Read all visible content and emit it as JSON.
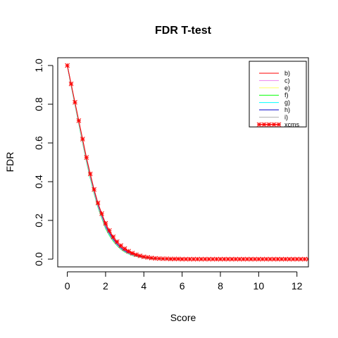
{
  "chart_data": {
    "type": "line",
    "title": "FDR T-test",
    "xlabel": "Score",
    "ylabel": "FDR",
    "xlim": [
      -0.5,
      12.6
    ],
    "ylim": [
      -0.04,
      1.04
    ],
    "x_ticks": [
      0,
      2,
      4,
      6,
      8,
      10,
      12
    ],
    "y_ticks": [
      0.0,
      0.2,
      0.4,
      0.6,
      0.8,
      1.0
    ],
    "x_tick_labels": [
      "0",
      "2",
      "4",
      "6",
      "8",
      "10",
      "12"
    ],
    "y_tick_labels": [
      "0.0",
      "0.2",
      "0.4",
      "0.6",
      "0.8",
      "1.0"
    ],
    "grid": false,
    "legend_position": "top-right",
    "x": [
      0,
      0.2,
      0.4,
      0.6,
      0.8,
      1.0,
      1.2,
      1.4,
      1.6,
      1.8,
      2.0,
      2.2,
      2.4,
      2.6,
      2.8,
      3.0,
      3.2,
      3.4,
      3.6,
      3.8,
      4.0,
      4.2,
      4.4,
      4.6,
      4.8,
      5.0,
      5.2,
      5.4,
      5.6,
      5.8,
      6.0,
      6.2,
      6.4,
      6.6,
      6.8,
      7.0,
      7.2,
      7.4,
      7.6,
      7.8,
      8.0,
      8.2,
      8.4,
      8.6,
      8.8,
      9.0,
      9.2,
      9.4,
      9.6,
      9.8,
      10.0,
      10.2,
      10.4,
      10.6,
      10.8,
      11.0,
      11.2,
      11.4,
      11.6,
      11.8,
      12.0,
      12.2,
      12.4,
      12.6
    ],
    "series": [
      {
        "name": "b)",
        "color": "#ff0000",
        "marker": "none",
        "values": [
          1.0,
          0.9,
          0.805,
          0.71,
          0.615,
          0.52,
          0.435,
          0.355,
          0.285,
          0.23,
          0.175,
          0.14,
          0.108,
          0.082,
          0.062,
          0.046,
          0.034,
          0.025,
          0.018,
          0.013,
          0.009,
          0.007,
          0.005,
          0.004,
          0.003,
          0.002,
          0.002,
          0.001,
          0.001,
          0.001,
          0.001,
          0,
          0,
          0,
          0,
          0,
          0,
          0,
          0,
          0,
          0,
          0,
          0,
          0,
          0,
          0,
          0,
          0,
          0,
          0,
          0,
          0,
          0,
          0,
          0,
          0,
          0,
          0,
          0,
          0,
          0,
          0,
          0,
          0
        ]
      },
      {
        "name": "c)",
        "color": "#ee82ee",
        "marker": "none",
        "values": [
          1.0,
          0.9,
          0.803,
          0.707,
          0.61,
          0.515,
          0.43,
          0.35,
          0.28,
          0.225,
          0.17,
          0.135,
          0.104,
          0.079,
          0.059,
          0.044,
          0.032,
          0.023,
          0.017,
          0.012,
          0.008,
          0.006,
          0.004,
          0.003,
          0.002,
          0.002,
          0.001,
          0.001,
          0.001,
          0,
          0,
          0,
          0,
          0,
          0,
          0,
          0,
          0,
          0,
          0,
          0,
          0,
          0,
          0,
          0,
          0,
          0,
          0,
          0,
          0,
          0,
          0,
          0,
          0,
          0,
          0,
          0,
          0,
          0,
          0,
          0,
          0,
          0,
          0
        ]
      },
      {
        "name": "e)",
        "color": "#ffff66",
        "marker": "none",
        "values": [
          1.0,
          0.898,
          0.8,
          0.703,
          0.605,
          0.51,
          0.425,
          0.345,
          0.275,
          0.22,
          0.165,
          0.13,
          0.1,
          0.076,
          0.056,
          0.041,
          0.03,
          0.022,
          0.016,
          0.011,
          0.008,
          0.005,
          0.004,
          0.003,
          0.002,
          0.001,
          0.001,
          0.001,
          0,
          0,
          0,
          0,
          0,
          0,
          0,
          0,
          0,
          0,
          0,
          0,
          0,
          0,
          0,
          0,
          0,
          0,
          0,
          0,
          0,
          0,
          0,
          0,
          0,
          0,
          0,
          0,
          0,
          0,
          0,
          0,
          0,
          0,
          0,
          0
        ]
      },
      {
        "name": "f)",
        "color": "#00ff00",
        "marker": "none",
        "values": [
          1.0,
          0.896,
          0.797,
          0.698,
          0.6,
          0.503,
          0.417,
          0.338,
          0.268,
          0.212,
          0.158,
          0.122,
          0.093,
          0.07,
          0.051,
          0.037,
          0.027,
          0.019,
          0.014,
          0.01,
          0.007,
          0.005,
          0.003,
          0.002,
          0.002,
          0.001,
          0.001,
          0,
          0,
          0,
          0,
          0,
          0,
          0,
          0,
          0,
          0,
          0,
          0,
          0,
          0,
          0,
          0,
          0,
          0,
          0,
          0,
          0,
          0,
          0,
          0,
          0,
          0,
          0,
          0,
          0,
          0,
          0,
          0,
          0,
          0,
          0,
          0,
          0
        ]
      },
      {
        "name": "g)",
        "color": "#00ffff",
        "marker": "none",
        "values": [
          1.0,
          0.897,
          0.799,
          0.7,
          0.602,
          0.506,
          0.42,
          0.341,
          0.271,
          0.215,
          0.161,
          0.125,
          0.096,
          0.072,
          0.053,
          0.039,
          0.028,
          0.02,
          0.015,
          0.01,
          0.007,
          0.005,
          0.003,
          0.002,
          0.002,
          0.001,
          0.001,
          0,
          0,
          0,
          0,
          0,
          0,
          0,
          0,
          0,
          0,
          0,
          0,
          0,
          0,
          0,
          0,
          0,
          0,
          0,
          0,
          0,
          0,
          0,
          0,
          0,
          0,
          0,
          0,
          0,
          0,
          0,
          0,
          0,
          0,
          0,
          0,
          0
        ]
      },
      {
        "name": "h)",
        "color": "#0000cd",
        "marker": "none",
        "values": [
          1.0,
          0.899,
          0.802,
          0.705,
          0.608,
          0.512,
          0.428,
          0.348,
          0.278,
          0.222,
          0.168,
          0.133,
          0.102,
          0.078,
          0.058,
          0.043,
          0.031,
          0.022,
          0.016,
          0.012,
          0.008,
          0.006,
          0.004,
          0.003,
          0.002,
          0.001,
          0.001,
          0.001,
          0,
          0,
          0,
          0,
          0,
          0,
          0,
          0,
          0,
          0,
          0,
          0,
          0,
          0,
          0,
          0,
          0,
          0,
          0,
          0,
          0,
          0,
          0,
          0,
          0,
          0,
          0,
          0,
          0,
          0,
          0,
          0,
          0,
          0,
          0,
          0
        ]
      },
      {
        "name": "i)",
        "color": "#b0b0b0",
        "marker": "none",
        "values": [
          1.0,
          0.898,
          0.8,
          0.702,
          0.604,
          0.508,
          0.423,
          0.343,
          0.273,
          0.218,
          0.164,
          0.128,
          0.098,
          0.074,
          0.055,
          0.04,
          0.029,
          0.021,
          0.015,
          0.011,
          0.008,
          0.005,
          0.004,
          0.003,
          0.002,
          0.001,
          0.001,
          0,
          0,
          0,
          0,
          0,
          0,
          0,
          0,
          0,
          0,
          0,
          0,
          0,
          0,
          0,
          0,
          0,
          0,
          0,
          0,
          0,
          0,
          0,
          0,
          0,
          0,
          0,
          0,
          0,
          0,
          0,
          0,
          0,
          0,
          0,
          0,
          0
        ]
      },
      {
        "name": "xcms",
        "color": "#ff0000",
        "marker": "star",
        "values": [
          1.0,
          0.905,
          0.81,
          0.715,
          0.62,
          0.525,
          0.44,
          0.36,
          0.29,
          0.235,
          0.185,
          0.148,
          0.115,
          0.09,
          0.07,
          0.054,
          0.041,
          0.031,
          0.023,
          0.017,
          0.012,
          0.009,
          0.006,
          0.004,
          0.003,
          0.002,
          0.002,
          0.001,
          0.001,
          0.001,
          0,
          0,
          0,
          0,
          0,
          0,
          0,
          0,
          0,
          0,
          0,
          0,
          0,
          0,
          0,
          0,
          0,
          0,
          0,
          0,
          0,
          0,
          0,
          0,
          0,
          0,
          0,
          0,
          0,
          0,
          0,
          0,
          0,
          0
        ]
      }
    ]
  }
}
